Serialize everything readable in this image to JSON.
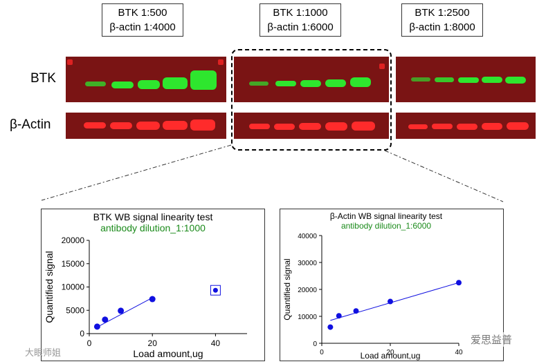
{
  "header_boxes": [
    {
      "line1": "BTK 1:500",
      "line2": "β-actin 1:4000"
    },
    {
      "line1": "BTK 1:1000",
      "line2": "β-actin 1:6000"
    },
    {
      "line1": "BTK 1:2500",
      "line2": "β-actin 1:8000"
    }
  ],
  "row_labels": {
    "btk": "BTK",
    "actin": "β-Actin"
  },
  "colors": {
    "blot_bg": "#7a1414",
    "btk_band": "#2ee62e",
    "actin_band": "#ff2b2b",
    "points": "#1010e0",
    "subtitle_green": "#1a8a1a"
  },
  "watermarks": {
    "left": "大眼师姐",
    "right": "爱思益普"
  },
  "chart_data": [
    {
      "type": "scatter",
      "title": "BTK WB signal linearity test",
      "subtitle": "antibody dilution_1:1000",
      "xlabel": "Load amount,ug",
      "ylabel": "Quantified signal",
      "xlim": [
        0,
        50
      ],
      "ylim": [
        0,
        20000
      ],
      "xticks": [
        "0",
        "20",
        "40"
      ],
      "yticks": [
        "0",
        "5000",
        "10000",
        "15000",
        "20000"
      ],
      "points": [
        {
          "x": 2.5,
          "y": 1500
        },
        {
          "x": 5,
          "y": 3000
        },
        {
          "x": 10,
          "y": 4900
        },
        {
          "x": 20,
          "y": 7400
        }
      ],
      "outlier": {
        "x": 40,
        "y": 9300
      },
      "fit_line": {
        "x_start": 2.5,
        "y_start": 1400,
        "x_end": 20,
        "y_end": 7700
      },
      "grid": false
    },
    {
      "type": "scatter",
      "title": "β-Actin WB signal linearity test",
      "subtitle": "antibody dilution_1:6000",
      "xlabel": "Load amount,ug",
      "ylabel": "Quantified signal",
      "xlim": [
        0,
        40
      ],
      "ylim": [
        0,
        40000
      ],
      "xticks": [
        "0",
        "20",
        "40"
      ],
      "yticks": [
        "0",
        "10000",
        "20000",
        "30000",
        "40000"
      ],
      "points": [
        {
          "x": 2.5,
          "y": 6000
        },
        {
          "x": 5,
          "y": 10200
        },
        {
          "x": 10,
          "y": 12000
        },
        {
          "x": 20,
          "y": 15500
        },
        {
          "x": 40,
          "y": 22500
        }
      ],
      "fit_line": {
        "x_start": 2.5,
        "y_start": 8500,
        "x_end": 40,
        "y_end": 22500
      },
      "grid": false
    }
  ]
}
